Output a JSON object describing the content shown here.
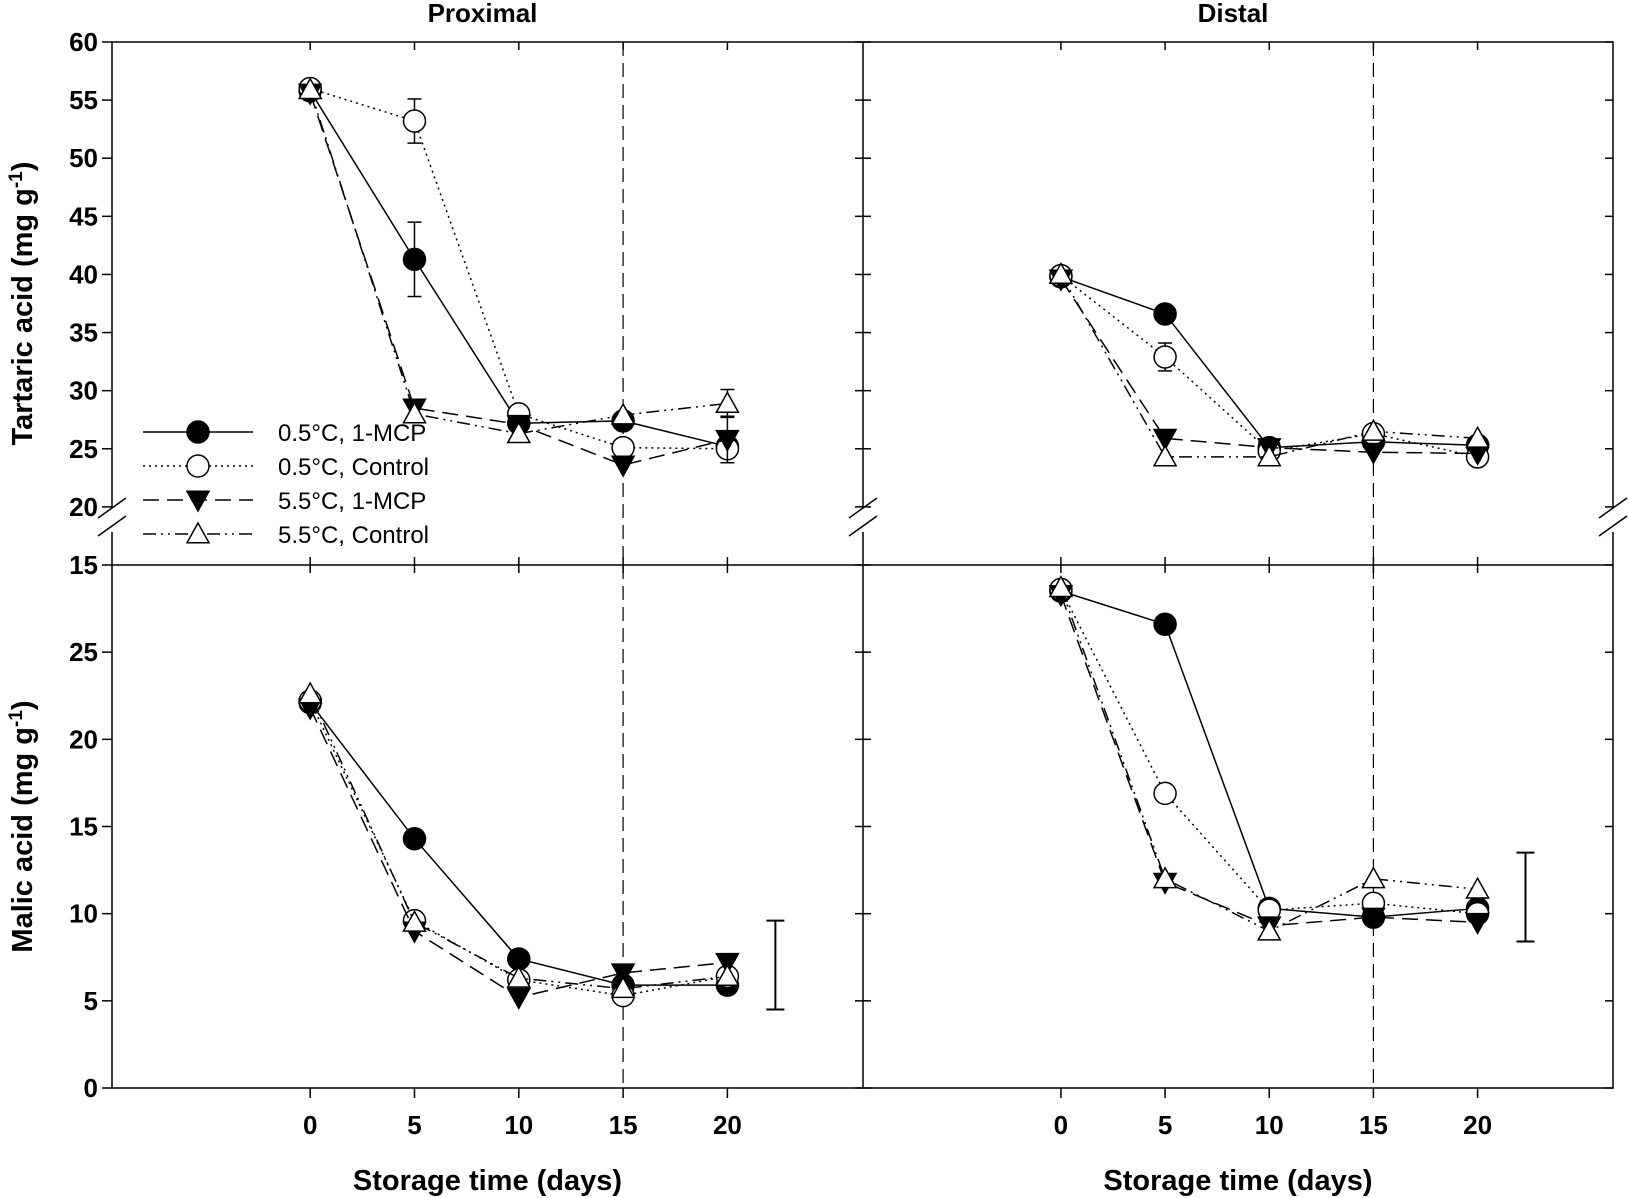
{
  "chart_data": {
    "type": "line",
    "x_ticks": [
      0,
      5,
      10,
      15,
      20
    ],
    "xlabel": "Storage time (days)",
    "vline_x": 15,
    "series_styles": [
      {
        "name": "0.5°C, 1-MCP",
        "marker": "circle",
        "fill": "filled",
        "line": "solid"
      },
      {
        "name": "0.5°C, Control",
        "marker": "circle",
        "fill": "open",
        "line": "dotted"
      },
      {
        "name": "5.5°C, 1-MCP",
        "marker": "triangle-down",
        "fill": "filled",
        "line": "dashed"
      },
      {
        "name": "5.5°C, Control",
        "marker": "triangle-up",
        "fill": "open",
        "line": "dash-dot-dot"
      }
    ],
    "columns": [
      "Proximal",
      "Distal"
    ],
    "rows": [
      {
        "ylabel_main": "Tartaric acid (mg g",
        "ylabel_sup": "-1",
        "ylabel_end": ")",
        "ylim": [
          15,
          60
        ],
        "y_ticks": [
          15,
          20,
          25,
          30,
          35,
          40,
          45,
          50,
          55,
          60
        ],
        "axis_break": true
      },
      {
        "ylabel_main": "Malic acid (mg g",
        "ylabel_sup": "-1",
        "ylabel_end": ")",
        "ylim": [
          0,
          30
        ],
        "y_ticks": [
          0,
          5,
          10,
          15,
          20,
          25
        ],
        "axis_break": false
      }
    ],
    "panels": [
      {
        "row": 0,
        "col": 0,
        "series": [
          {
            "name": "0.5°C, 1-MCP",
            "x": [
              0,
              5,
              10,
              15,
              20
            ],
            "y": [
              55.8,
              41.3,
              27.2,
              27.4,
              25.2
            ],
            "err": [
              null,
              3.2,
              null,
              null,
              null
            ]
          },
          {
            "name": "0.5°C, Control",
            "x": [
              0,
              5,
              10,
              15,
              20
            ],
            "y": [
              56.0,
              53.2,
              28.0,
              25.1,
              25.0
            ],
            "err": [
              null,
              1.9,
              null,
              null,
              null
            ]
          },
          {
            "name": "5.5°C, 1-MCP",
            "x": [
              0,
              5,
              10,
              15,
              20
            ],
            "y": [
              55.6,
              28.5,
              27.1,
              23.6,
              25.8
            ],
            "err": [
              null,
              null,
              null,
              null,
              2.0
            ]
          },
          {
            "name": "5.5°C, Control",
            "x": [
              0,
              5,
              10,
              15,
              20
            ],
            "y": [
              55.9,
              28.0,
              26.3,
              27.9,
              28.9
            ],
            "err": [
              null,
              null,
              null,
              null,
              1.2
            ]
          }
        ]
      },
      {
        "row": 0,
        "col": 1,
        "series": [
          {
            "name": "0.5°C, 1-MCP",
            "x": [
              0,
              5,
              10,
              15,
              20
            ],
            "y": [
              39.8,
              36.6,
              25.1,
              25.6,
              25.3
            ],
            "err": [
              null,
              null,
              null,
              null,
              null
            ]
          },
          {
            "name": "0.5°C, Control",
            "x": [
              0,
              5,
              10,
              15,
              20
            ],
            "y": [
              39.9,
              32.9,
              24.8,
              26.3,
              24.3
            ],
            "err": [
              null,
              1.2,
              null,
              null,
              null
            ]
          },
          {
            "name": "5.5°C, 1-MCP",
            "x": [
              0,
              5,
              10,
              15,
              20
            ],
            "y": [
              39.6,
              25.9,
              25.1,
              24.7,
              24.6
            ],
            "err": [
              null,
              null,
              null,
              null,
              null
            ]
          },
          {
            "name": "5.5°C, Control",
            "x": [
              0,
              5,
              10,
              15,
              20
            ],
            "y": [
              40.0,
              24.3,
              24.3,
              26.5,
              25.9
            ],
            "err": [
              null,
              null,
              null,
              null,
              null
            ]
          }
        ]
      },
      {
        "row": 1,
        "col": 0,
        "error_bar": {
          "x": 22.3,
          "low": 4.5,
          "high": 9.6
        },
        "series": [
          {
            "name": "0.5°C, 1-MCP",
            "x": [
              0,
              5,
              10,
              15,
              20
            ],
            "y": [
              22.1,
              14.3,
              7.4,
              5.9,
              5.9
            ],
            "err": [
              null,
              null,
              null,
              null,
              null
            ]
          },
          {
            "name": "0.5°C, Control",
            "x": [
              0,
              5,
              10,
              15,
              20
            ],
            "y": [
              22.2,
              9.6,
              6.2,
              5.3,
              6.4
            ],
            "err": [
              null,
              null,
              null,
              null,
              null
            ]
          },
          {
            "name": "5.5°C, 1-MCP",
            "x": [
              0,
              5,
              10,
              15,
              20
            ],
            "y": [
              21.8,
              9.0,
              5.2,
              6.6,
              7.2
            ],
            "err": [
              null,
              null,
              null,
              null,
              null
            ]
          },
          {
            "name": "5.5°C, Control",
            "x": [
              0,
              5,
              10,
              15,
              20
            ],
            "y": [
              22.6,
              9.5,
              6.3,
              5.7,
              6.4
            ],
            "err": [
              null,
              null,
              null,
              null,
              null
            ]
          }
        ]
      },
      {
        "row": 1,
        "col": 1,
        "error_bar": {
          "x": 22.3,
          "low": 8.4,
          "high": 13.5
        },
        "series": [
          {
            "name": "0.5°C, 1-MCP",
            "x": [
              0,
              5,
              10,
              15,
              20
            ],
            "y": [
              28.5,
              26.6,
              10.3,
              9.8,
              10.3
            ],
            "err": [
              null,
              null,
              null,
              null,
              null
            ]
          },
          {
            "name": "0.5°C, Control",
            "x": [
              0,
              5,
              10,
              15,
              20
            ],
            "y": [
              28.6,
              16.9,
              10.2,
              10.6,
              10.0
            ],
            "err": [
              null,
              null,
              null,
              null,
              null
            ]
          },
          {
            "name": "5.5°C, 1-MCP",
            "x": [
              0,
              5,
              10,
              15,
              20
            ],
            "y": [
              28.3,
              11.8,
              9.3,
              9.8,
              9.5
            ],
            "err": [
              null,
              null,
              null,
              null,
              null
            ]
          },
          {
            "name": "5.5°C, Control",
            "x": [
              0,
              5,
              10,
              15,
              20
            ],
            "y": [
              28.7,
              12.0,
              9.0,
              12.0,
              11.4
            ],
            "err": [
              null,
              null,
              null,
              null,
              null
            ]
          }
        ]
      }
    ]
  }
}
